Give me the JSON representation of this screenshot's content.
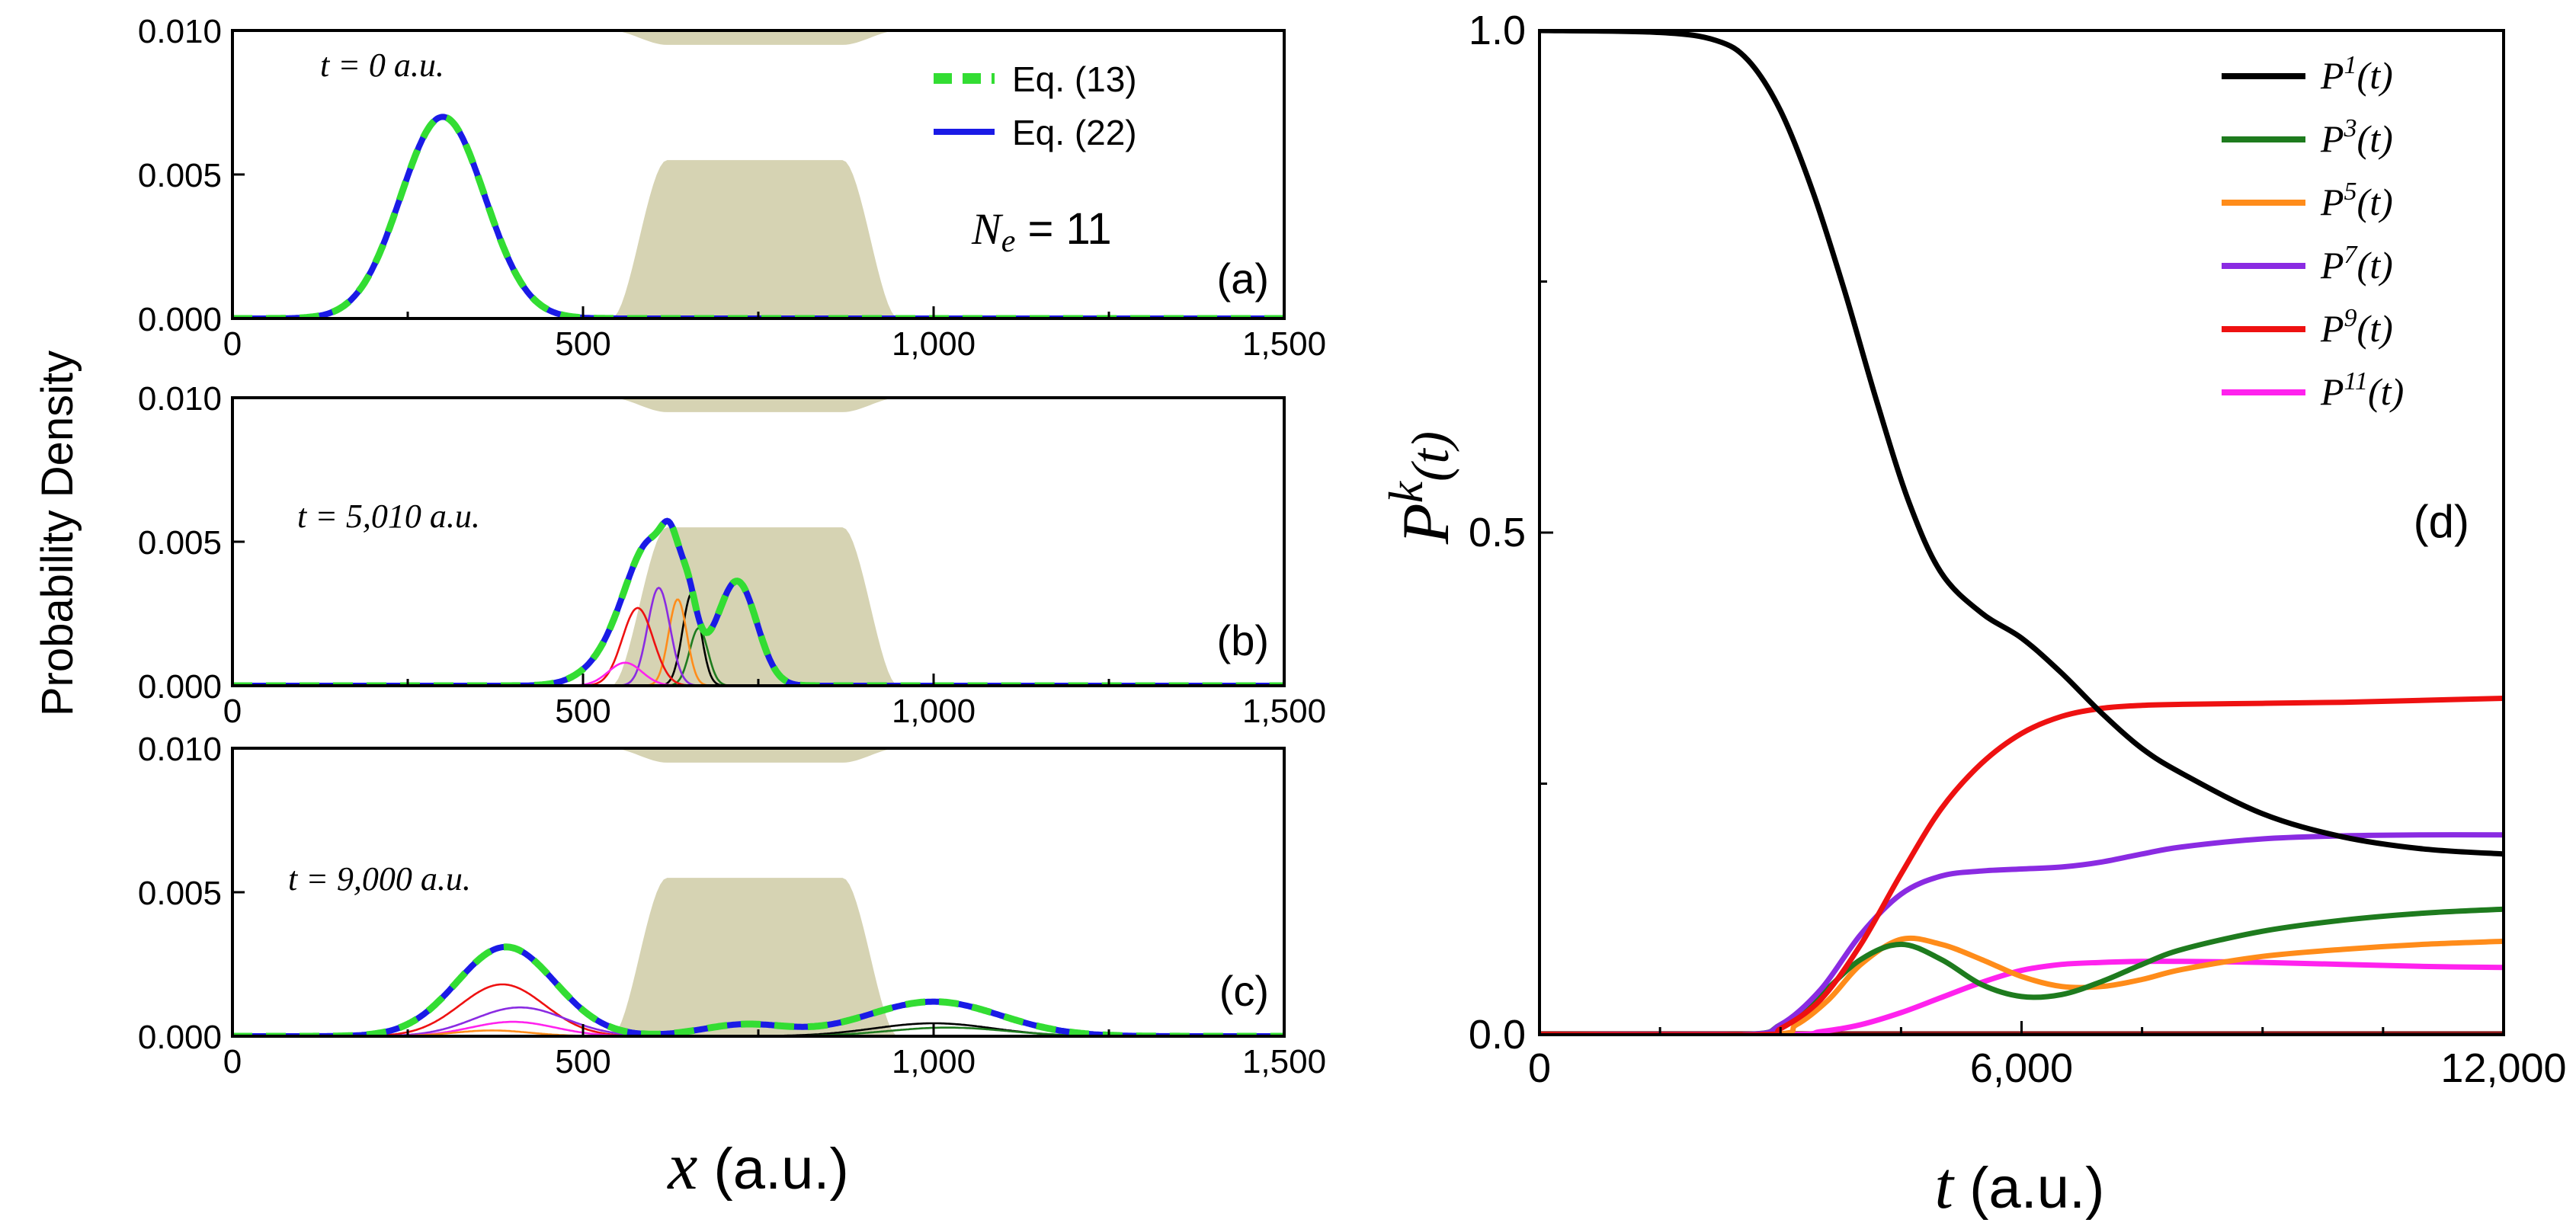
{
  "figure": {
    "left_ylabel": "Probability Density",
    "left_xlabel_var": "x",
    "left_xlabel_unit": " (a.u.)",
    "right_xlabel_var": "t",
    "right_xlabel_unit": " (a.u.)",
    "right_ylabel_base": "P",
    "right_ylabel_sup": "k",
    "right_ylabel_arg": "(t)"
  },
  "colors": {
    "barrier": "#d6d3b3",
    "eq13": "#33dd33",
    "eq22": "#1a1ae6",
    "k1": "#000000",
    "k3": "#1e7b1e",
    "k5": "#ff8c1a",
    "k7": "#8a2be2",
    "k9": "#ee1111",
    "k11": "#ff22ee"
  },
  "chart_data": [
    {
      "type": "line",
      "panel": "(a)",
      "time_label": "t = 0 a.u.",
      "ne_label_var": "N",
      "ne_label_sub": "e",
      "ne_label_value": " = 11",
      "xlim": [
        0,
        1500
      ],
      "ylim": [
        0,
        0.01
      ],
      "xticks": [
        0,
        500,
        1000,
        1500
      ],
      "xtick_labels": [
        "0",
        "500",
        "1,000",
        "1,500"
      ],
      "yticks": [
        0,
        0.005,
        0.01
      ],
      "ytick_labels": [
        "0.000",
        "0.005",
        "0.010"
      ],
      "legend": [
        {
          "label": "Eq. (13)",
          "style": "dashed",
          "color": "#33dd33"
        },
        {
          "label": "Eq. (22)",
          "style": "solid",
          "color": "#1a1ae6"
        }
      ],
      "barrier": {
        "x_left_edge": 540,
        "x_right_edge": 950,
        "x_flat": [
          620,
          870
        ],
        "gap": [
          0.0055,
          0.0095
        ]
      },
      "components": [
        {
          "name": "total",
          "peaks": [
            {
              "x": 300,
              "w": 60,
              "a": 0.007
            }
          ]
        }
      ]
    },
    {
      "type": "line",
      "panel": "(b)",
      "time_label": "t = 5,010 a.u.",
      "xlim": [
        0,
        1500
      ],
      "ylim": [
        0,
        0.01
      ],
      "xticks": [
        0,
        500,
        1000,
        1500
      ],
      "xtick_labels": [
        "0",
        "500",
        "1,000",
        "1,500"
      ],
      "yticks": [
        0,
        0.005,
        0.01
      ],
      "ytick_labels": [
        "0.000",
        "0.005",
        "0.010"
      ],
      "barrier": {
        "x_left_edge": 540,
        "x_right_edge": 950,
        "x_flat": [
          620,
          870
        ],
        "gap": [
          0.0055,
          0.0095
        ]
      },
      "components": [
        {
          "name": "total",
          "peaks": [
            {
              "x": 600,
              "w": 38,
              "a": 0.0048
            },
            {
              "x": 625,
              "w": 12,
              "a": 0.0015
            },
            {
              "x": 650,
              "w": 12,
              "a": 0.0015
            },
            {
              "x": 720,
              "w": 28,
              "a": 0.0036
            },
            {
              "x": 540,
              "w": 40,
              "a": 0.0007
            }
          ]
        },
        {
          "name": "P1",
          "color": "#000000",
          "peaks": [
            {
              "x": 655,
              "w": 13,
              "a": 0.0032
            }
          ]
        },
        {
          "name": "P3",
          "color": "#1e7b1e",
          "peaks": [
            {
              "x": 665,
              "w": 13,
              "a": 0.002
            }
          ]
        },
        {
          "name": "P5",
          "color": "#ff8c1a",
          "peaks": [
            {
              "x": 635,
              "w": 13,
              "a": 0.003
            }
          ]
        },
        {
          "name": "P7",
          "color": "#8a2be2",
          "peaks": [
            {
              "x": 608,
              "w": 16,
              "a": 0.0034
            }
          ]
        },
        {
          "name": "P9",
          "color": "#ee1111",
          "peaks": [
            {
              "x": 578,
              "w": 22,
              "a": 0.0027
            }
          ]
        },
        {
          "name": "P11",
          "color": "#ff22ee",
          "peaks": [
            {
              "x": 560,
              "w": 24,
              "a": 0.0008
            }
          ]
        }
      ]
    },
    {
      "type": "line",
      "panel": "(c)",
      "time_label": "t = 9,000 a.u.",
      "xlim": [
        0,
        1500
      ],
      "ylim": [
        0,
        0.01
      ],
      "xticks": [
        0,
        500,
        1000,
        1500
      ],
      "xtick_labels": [
        "0",
        "500",
        "1,000",
        "1,500"
      ],
      "yticks": [
        0,
        0.005,
        0.01
      ],
      "ytick_labels": [
        "0.000",
        "0.005",
        "0.010"
      ],
      "barrier": {
        "x_left_edge": 540,
        "x_right_edge": 950,
        "x_flat": [
          620,
          870
        ],
        "gap": [
          0.0055,
          0.0095
        ]
      },
      "components": [
        {
          "name": "total",
          "peaks": [
            {
              "x": 390,
              "w": 70,
              "a": 0.0031
            },
            {
              "x": 1000,
              "w": 95,
              "a": 0.0012
            },
            {
              "x": 730,
              "w": 60,
              "a": 0.0004
            }
          ]
        },
        {
          "name": "P9",
          "color": "#ee1111",
          "peaks": [
            {
              "x": 385,
              "w": 60,
              "a": 0.0018
            }
          ]
        },
        {
          "name": "P7",
          "color": "#8a2be2",
          "peaks": [
            {
              "x": 410,
              "w": 65,
              "a": 0.001
            }
          ]
        },
        {
          "name": "P11",
          "color": "#ff22ee",
          "peaks": [
            {
              "x": 400,
              "w": 60,
              "a": 0.0005
            }
          ]
        },
        {
          "name": "P5",
          "color": "#ff8c1a",
          "peaks": [
            {
              "x": 370,
              "w": 55,
              "a": 0.0002
            }
          ]
        },
        {
          "name": "P1",
          "color": "#000000",
          "peaks": [
            {
              "x": 1000,
              "w": 85,
              "a": 0.00045
            }
          ]
        },
        {
          "name": "P3",
          "color": "#1e7b1e",
          "peaks": [
            {
              "x": 1020,
              "w": 85,
              "a": 0.0003
            }
          ]
        }
      ]
    },
    {
      "type": "line",
      "panel": "(d)",
      "xlim": [
        0,
        12000
      ],
      "ylim": [
        0,
        1.0
      ],
      "xticks": [
        0,
        6000,
        12000
      ],
      "xtick_labels": [
        "0",
        "6,000",
        "12,000"
      ],
      "yticks": [
        0,
        0.5,
        1.0
      ],
      "ytick_labels": [
        "0.0",
        "0.5",
        "1.0"
      ],
      "legend": [
        {
          "base": "P",
          "sup": "1",
          "arg": "(t)",
          "color": "#000000"
        },
        {
          "base": "P",
          "sup": "3",
          "arg": "(t)",
          "color": "#1e7b1e"
        },
        {
          "base": "P",
          "sup": "5",
          "arg": "(t)",
          "color": "#ff8c1a"
        },
        {
          "base": "P",
          "sup": "7",
          "arg": "(t)",
          "color": "#8a2be2"
        },
        {
          "base": "P",
          "sup": "9",
          "arg": "(t)",
          "color": "#ee1111"
        },
        {
          "base": "P",
          "sup": "11",
          "arg": "(t)",
          "color": "#ff22ee"
        }
      ],
      "series": [
        {
          "name": "P1(t)",
          "color": "#000000",
          "x": [
            0,
            1500,
            2200,
            2600,
            3000,
            3400,
            3800,
            4200,
            4600,
            5000,
            5500,
            6000,
            6500,
            7000,
            7500,
            8000,
            9000,
            10000,
            11000,
            12000
          ],
          "values": [
            1.0,
            0.998,
            0.99,
            0.97,
            0.92,
            0.84,
            0.74,
            0.63,
            0.53,
            0.46,
            0.42,
            0.395,
            0.36,
            0.32,
            0.285,
            0.26,
            0.22,
            0.197,
            0.185,
            0.18
          ]
        },
        {
          "name": "P3(t)",
          "color": "#1e7b1e",
          "x": [
            0,
            2500,
            3000,
            3500,
            4000,
            4500,
            5000,
            5500,
            6000,
            6500,
            7000,
            7500,
            8000,
            9000,
            10000,
            11000,
            12000
          ],
          "values": [
            0,
            0.0,
            0.01,
            0.04,
            0.075,
            0.09,
            0.075,
            0.05,
            0.038,
            0.04,
            0.053,
            0.07,
            0.085,
            0.103,
            0.114,
            0.121,
            0.125
          ]
        },
        {
          "name": "P5(t)",
          "color": "#ff8c1a",
          "x": [
            0,
            2800,
            3200,
            3600,
            4000,
            4500,
            5000,
            5500,
            6000,
            6500,
            7000,
            7500,
            8000,
            9000,
            10000,
            11000,
            12000
          ],
          "values": [
            0,
            0.0,
            0.01,
            0.035,
            0.07,
            0.095,
            0.09,
            0.075,
            0.058,
            0.048,
            0.048,
            0.055,
            0.065,
            0.078,
            0.085,
            0.09,
            0.093
          ]
        },
        {
          "name": "P7(t)",
          "color": "#8a2be2",
          "x": [
            0,
            2500,
            3000,
            3500,
            4000,
            4500,
            5000,
            5500,
            6000,
            6500,
            7000,
            7500,
            8000,
            9000,
            10000,
            11000,
            12000
          ],
          "values": [
            0,
            0.0,
            0.01,
            0.045,
            0.1,
            0.14,
            0.158,
            0.163,
            0.165,
            0.167,
            0.172,
            0.18,
            0.187,
            0.195,
            0.198,
            0.199,
            0.199
          ]
        },
        {
          "name": "P9(t)",
          "color": "#ee1111",
          "x": [
            0,
            2700,
            3000,
            3500,
            4000,
            4500,
            5000,
            5500,
            6000,
            6500,
            7000,
            7500,
            8000,
            9000,
            10000,
            11000,
            12000
          ],
          "values": [
            0,
            0.0,
            0.006,
            0.035,
            0.09,
            0.16,
            0.225,
            0.27,
            0.3,
            0.317,
            0.325,
            0.328,
            0.329,
            0.33,
            0.331,
            0.333,
            0.335
          ]
        },
        {
          "name": "P11(t)",
          "color": "#ff22ee",
          "x": [
            0,
            3000,
            3500,
            4000,
            4500,
            5000,
            5500,
            6000,
            6500,
            7000,
            7500,
            8000,
            9000,
            10000,
            11000,
            12000
          ],
          "values": [
            0,
            0.0,
            0.003,
            0.01,
            0.022,
            0.037,
            0.052,
            0.064,
            0.07,
            0.072,
            0.073,
            0.073,
            0.072,
            0.07,
            0.068,
            0.067
          ]
        }
      ]
    }
  ]
}
